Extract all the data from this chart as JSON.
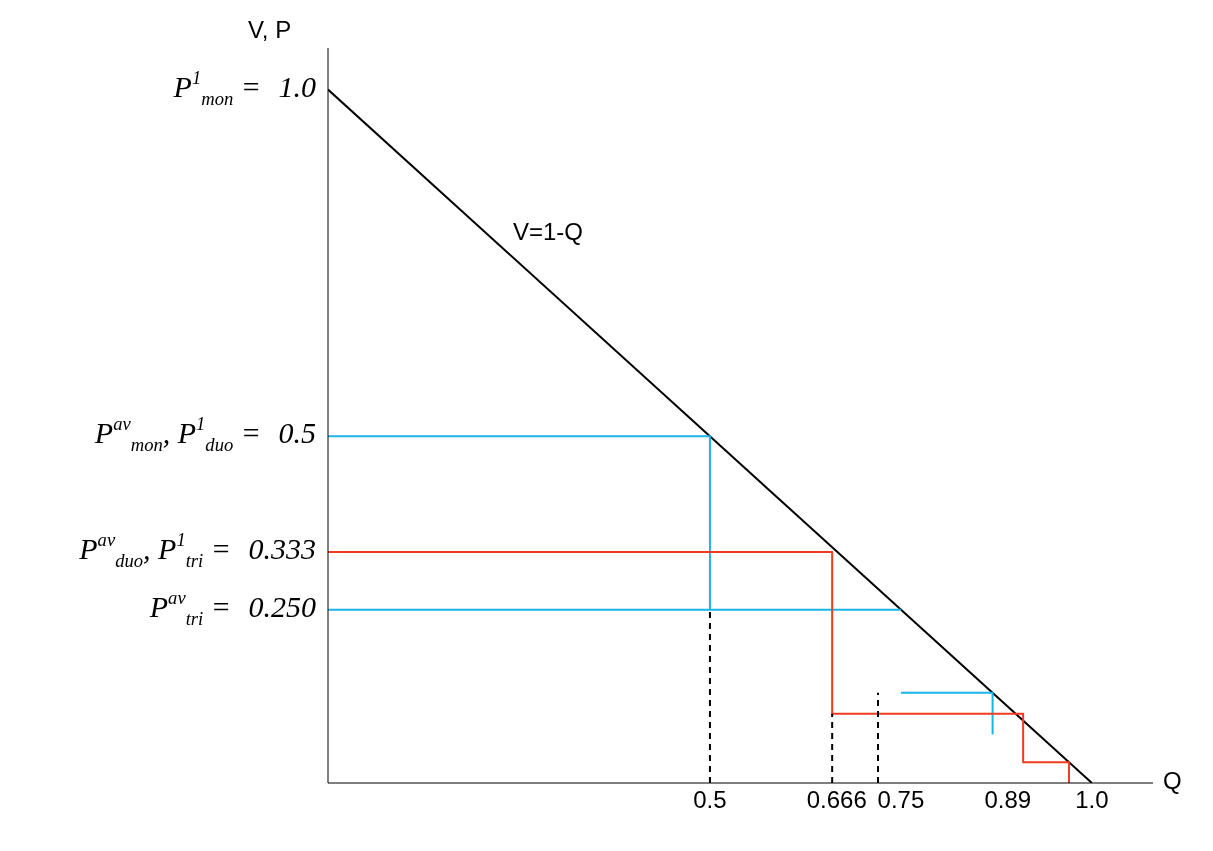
{
  "chart_data": {
    "type": "line",
    "xlabel": "Q",
    "ylabel": "V, P",
    "xlim": [
      0,
      1.08
    ],
    "ylim": [
      0,
      1.06
    ],
    "xticks": [
      0.5,
      0.666,
      0.75,
      0.89,
      {
        "value": 1,
        "label": "1.0"
      }
    ],
    "yticks": [
      {
        "value": 1,
        "label": "1.0"
      },
      0.5,
      0.333,
      {
        "value": 0.25,
        "label": "0.250"
      }
    ],
    "series": [
      {
        "color": "#000000",
        "x": [
          0,
          1
        ],
        "values": [
          1,
          0
        ]
      },
      {
        "color": "#1ab4e6",
        "x": [
          0,
          0.5,
          0.5
        ],
        "values": [
          0.5,
          0.5,
          0.25
        ]
      },
      {
        "color": "#1ab4e6",
        "x": [
          0,
          0.75
        ],
        "values": [
          0.25,
          0.25
        ]
      },
      {
        "color": "#1ab4e6",
        "x": [
          0.75,
          0.87,
          0.87
        ],
        "values": [
          0.13,
          0.13,
          0.07
        ]
      },
      {
        "color": "#f03c1e",
        "x": [
          0,
          0.66,
          0.66,
          0.91,
          0.91,
          0.97,
          0.97
        ],
        "values": [
          0.333,
          0.333,
          0.1,
          0.1,
          0.03,
          0.03,
          0
        ]
      },
      {
        "color": "#000000",
        "line_style": "dashed",
        "x": [
          0.5,
          0.5
        ],
        "values": [
          0,
          0.25
        ]
      },
      {
        "color": "#000000",
        "line_style": "dashed",
        "x": [
          0.66,
          0.66
        ],
        "values": [
          0,
          0.1
        ]
      },
      {
        "color": "#000000",
        "line_style": "dashed",
        "x": [
          0.72,
          0.72
        ],
        "values": [
          0,
          0.13
        ]
      }
    ],
    "annotations": [
      "V=1-Q",
      "P$^{1}$$_{mon}$ =",
      "P$^{av}$$_{mon}$, P$^{1}$$_{duo}$ =",
      "P$^{av}$$_{duo}$, P$^{1}$$_{tri}$ =",
      "P$^{av}$$_{tri}$ ="
    ]
  }
}
